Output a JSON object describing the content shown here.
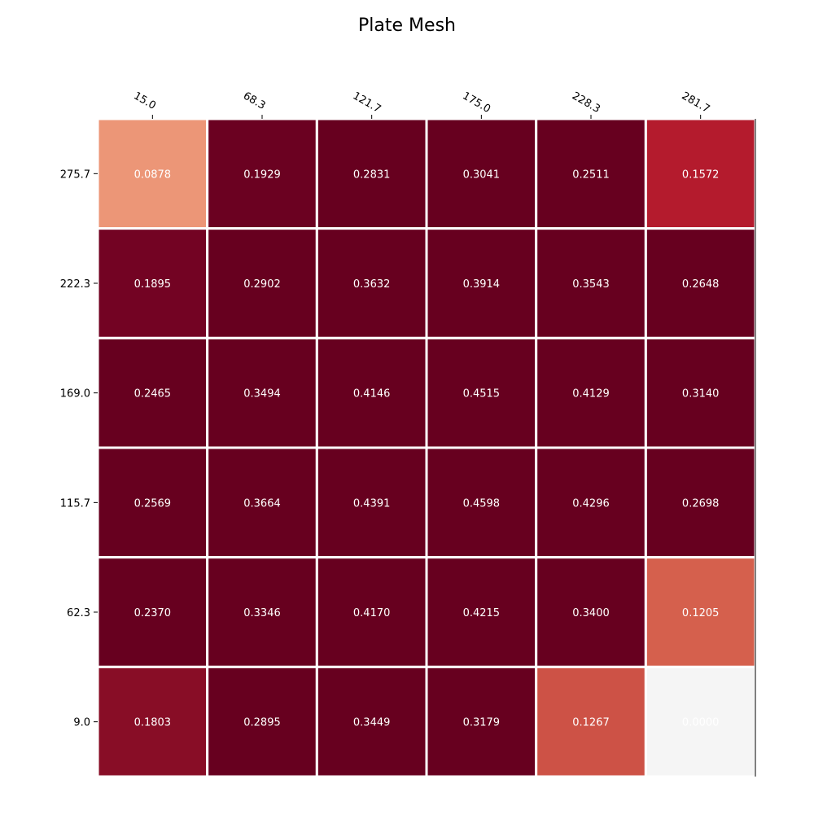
{
  "chart_data": {
    "type": "heatmap",
    "title": "Plate Mesh",
    "xlabel": "",
    "ylabel": "",
    "x_tick_labels": [
      "15.0",
      "68.3",
      "121.7",
      "175.0",
      "228.3",
      "281.7"
    ],
    "y_tick_labels": [
      "275.7",
      "222.3",
      "169.0",
      "115.7",
      "62.3",
      "9.0"
    ],
    "x_axis_position": "top",
    "grid": false,
    "colormap": "red-white diverging",
    "values": [
      [
        0.0878,
        0.1929,
        0.2831,
        0.3041,
        0.2511,
        0.1572
      ],
      [
        0.1895,
        0.2902,
        0.3632,
        0.3914,
        0.3543,
        0.2648
      ],
      [
        0.2465,
        0.3494,
        0.4146,
        0.4515,
        0.4129,
        0.314
      ],
      [
        0.2569,
        0.3664,
        0.4391,
        0.4598,
        0.4296,
        0.2698
      ],
      [
        0.237,
        0.3346,
        0.417,
        0.4215,
        0.34,
        0.1205
      ],
      [
        0.1803,
        0.2895,
        0.3449,
        0.3179,
        0.1267,
        0.0
      ]
    ],
    "value_labels": [
      [
        "0.0878",
        "0.1929",
        "0.2831",
        "0.3041",
        "0.2511",
        "0.1572"
      ],
      [
        "0.1895",
        "0.2902",
        "0.3632",
        "0.3914",
        "0.3543",
        "0.2648"
      ],
      [
        "0.2465",
        "0.3494",
        "0.4146",
        "0.4515",
        "0.4129",
        "0.3140"
      ],
      [
        "0.2569",
        "0.3664",
        "0.4391",
        "0.4598",
        "0.4296",
        "0.2698"
      ],
      [
        "0.2370",
        "0.3346",
        "0.4170",
        "0.4215",
        "0.3400",
        "0.1205"
      ],
      [
        "0.1803",
        "0.2895",
        "0.3449",
        "0.3179",
        "0.1267",
        "0.0000"
      ]
    ],
    "cell_colors": [
      [
        "#ec9677",
        "#6b0121",
        "#67001f",
        "#67001f",
        "#67001f",
        "#b41b2d"
      ],
      [
        "#730323",
        "#67001f",
        "#67001f",
        "#67001f",
        "#67001f",
        "#67001f"
      ],
      [
        "#67001f",
        "#67001f",
        "#67001f",
        "#67001f",
        "#67001f",
        "#67001f"
      ],
      [
        "#67001f",
        "#67001f",
        "#67001f",
        "#67001f",
        "#67001f",
        "#67001f"
      ],
      [
        "#67001f",
        "#67001f",
        "#67001f",
        "#67001f",
        "#67001f",
        "#d5604d"
      ],
      [
        "#880d26",
        "#67001f",
        "#67001f",
        "#67001f",
        "#cd5246",
        "#f5f5f5"
      ]
    ],
    "label_color": "#ffffff",
    "cell_border_color": "#ffffff"
  }
}
